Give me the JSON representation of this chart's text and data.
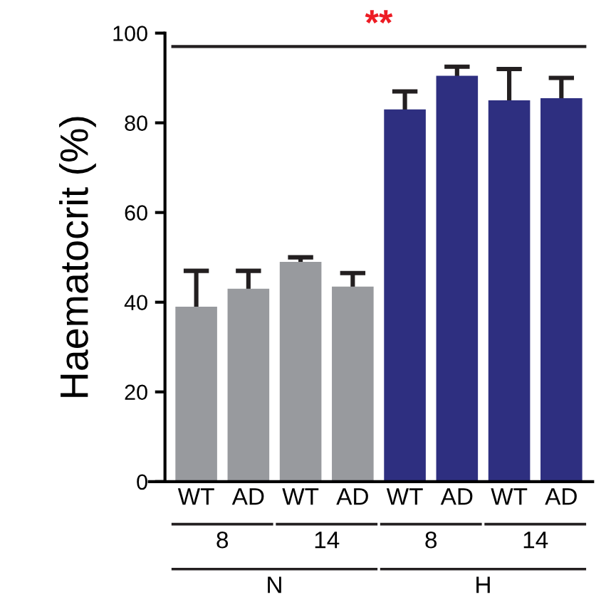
{
  "chart_data": {
    "type": "bar",
    "ylabel": "Haematocrit (%)",
    "categories": [
      "WT",
      "AD",
      "WT",
      "AD",
      "WT",
      "AD",
      "WT",
      "AD"
    ],
    "values": [
      39,
      43,
      49,
      43.5,
      83,
      90.5,
      85,
      85.5
    ],
    "colors": [
      "#989a9e",
      "#989a9e",
      "#989a9e",
      "#989a9e",
      "#2e2f80",
      "#2e2f80",
      "#2e2f80",
      "#2e2f80"
    ],
    "errors": [
      8,
      4,
      1,
      3,
      4,
      2,
      7,
      4.5
    ],
    "ylim": [
      0,
      100
    ],
    "yticks": [
      0,
      20,
      40,
      60,
      80,
      100
    ],
    "grid": false,
    "ref_lines": [
      {
        "axis": "y",
        "value": 97,
        "label": "**",
        "color": "#231f20"
      }
    ],
    "annotations": [
      "8",
      "14",
      "8",
      "14",
      "N",
      "H"
    ]
  }
}
